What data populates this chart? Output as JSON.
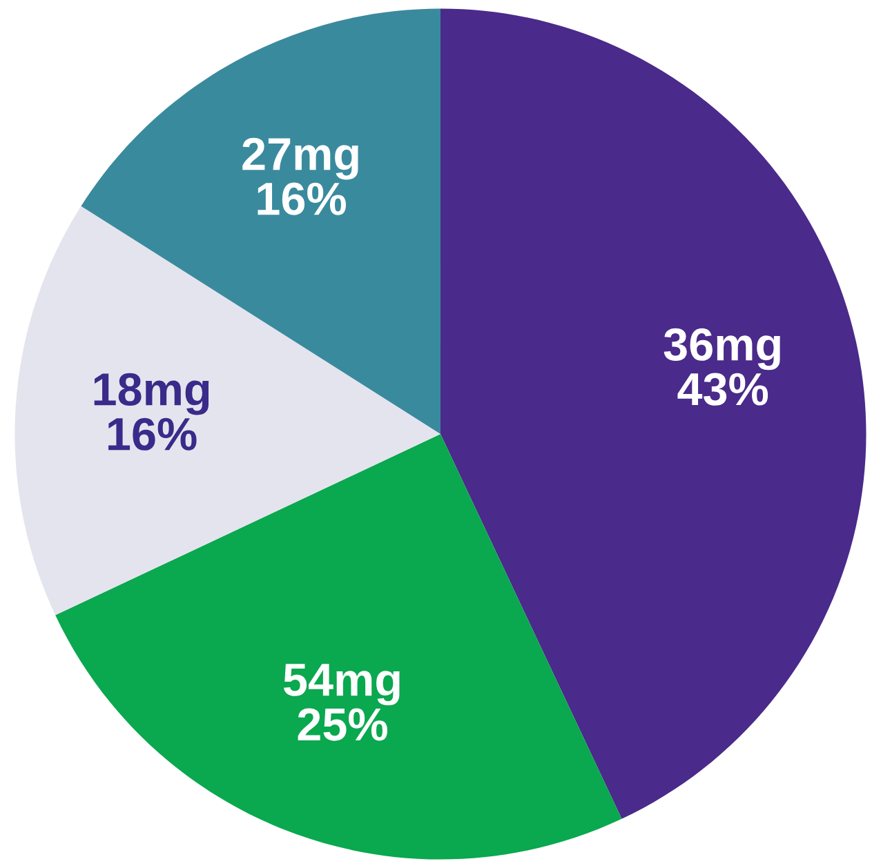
{
  "chart_data": {
    "type": "pie",
    "categories": [
      "36mg",
      "54mg",
      "18mg",
      "27mg"
    ],
    "values": [
      43,
      25,
      16,
      16
    ],
    "value_labels": [
      "43%",
      "25%",
      "16%",
      "16%"
    ],
    "colors": [
      "#4a2a8a",
      "#0aa84f",
      "#e4e4ee",
      "#3a8a9e"
    ]
  }
}
